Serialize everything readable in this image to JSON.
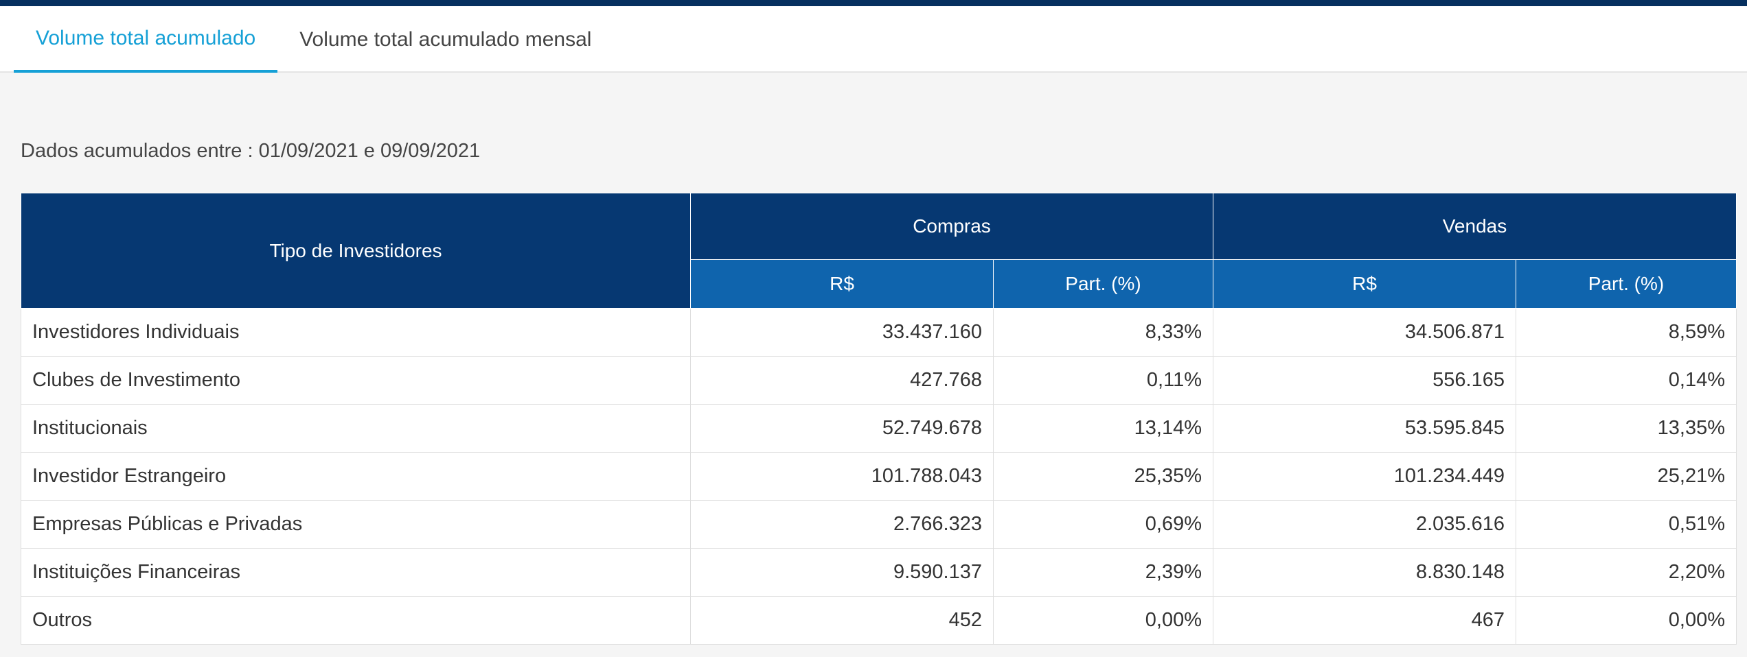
{
  "tabs": [
    {
      "label": "Volume total acumulado",
      "active": true
    },
    {
      "label": "Volume total acumulado mensal",
      "active": false
    }
  ],
  "date_range": "Dados acumulados entre : 01/09/2021 e 09/09/2021",
  "table": {
    "header": {
      "investor_type": "Tipo de Investidores",
      "compras": "Compras",
      "vendas": "Vendas",
      "currency": "R$",
      "share": "Part. (%)"
    },
    "rows": [
      {
        "type": "Investidores Individuais",
        "compras_rs": "33.437.160",
        "compras_pct": "8,33%",
        "vendas_rs": "34.506.871",
        "vendas_pct": "8,59%"
      },
      {
        "type": "Clubes de Investimento",
        "compras_rs": "427.768",
        "compras_pct": "0,11%",
        "vendas_rs": "556.165",
        "vendas_pct": "0,14%"
      },
      {
        "type": "Institucionais",
        "compras_rs": "52.749.678",
        "compras_pct": "13,14%",
        "vendas_rs": "53.595.845",
        "vendas_pct": "13,35%"
      },
      {
        "type": "Investidor Estrangeiro",
        "compras_rs": "101.788.043",
        "compras_pct": "25,35%",
        "vendas_rs": "101.234.449",
        "vendas_pct": "25,21%"
      },
      {
        "type": "Empresas Públicas e Privadas",
        "compras_rs": "2.766.323",
        "compras_pct": "0,69%",
        "vendas_rs": "2.035.616",
        "vendas_pct": "0,51%"
      },
      {
        "type": "Instituições Financeiras",
        "compras_rs": "9.590.137",
        "compras_pct": "2,39%",
        "vendas_rs": "8.830.148",
        "vendas_pct": "2,20%"
      },
      {
        "type": "Outros",
        "compras_rs": "452",
        "compras_pct": "0,00%",
        "vendas_rs": "467",
        "vendas_pct": "0,00%"
      }
    ]
  },
  "colors": {
    "top_bar": "#06305f",
    "header_primary": "#063872",
    "header_secondary": "#0f64ad",
    "tab_active": "#15a0d6"
  }
}
